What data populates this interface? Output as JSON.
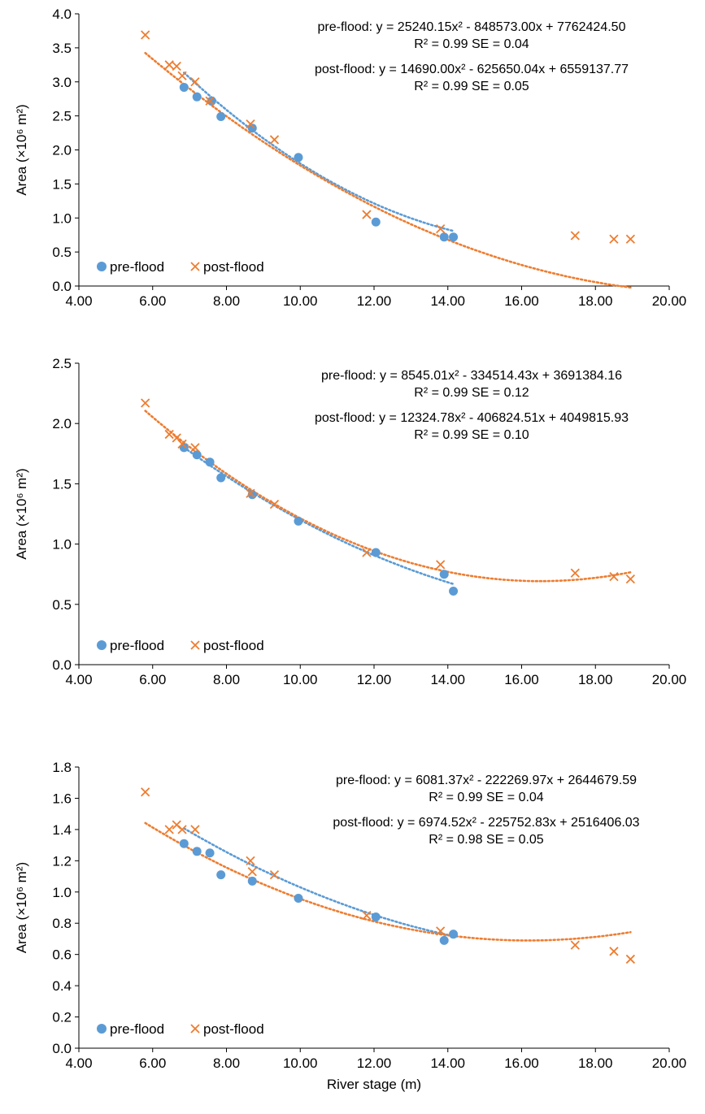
{
  "colors": {
    "pre": "#5b9bd5",
    "post": "#ed7d31",
    "axis": "#000000"
  },
  "chart_data": [
    {
      "type": "scatter",
      "xlabel": "",
      "ylabel": "Area (×10⁶ m²)",
      "xlim": [
        4,
        20
      ],
      "ylim": [
        0,
        4
      ],
      "xticks": [
        "4.00",
        "6.00",
        "8.00",
        "10.00",
        "12.00",
        "14.00",
        "16.00",
        "18.00",
        "20.00"
      ],
      "yticks": [
        "0.0",
        "0.5",
        "1.0",
        "1.5",
        "2.0",
        "2.5",
        "3.0",
        "3.5",
        "4.0"
      ],
      "legend": [
        "pre-flood",
        "post-flood"
      ],
      "legend_position": "bottom-left",
      "equations": [
        "pre-flood: y = 25240.15x² - 848573.00x + 7762424.50",
        "R² = 0.99   SE = 0.04",
        "post-flood: y = 14690.00x² - 625650.04x + 6559137.77",
        "R² = 0.99   SE = 0.05"
      ],
      "series": [
        {
          "name": "pre-flood",
          "marker": "circle",
          "x": [
            6.85,
            7.2,
            7.6,
            7.85,
            8.7,
            9.95,
            12.05,
            13.9,
            14.15
          ],
          "y": [
            2.92,
            2.78,
            2.72,
            2.49,
            2.32,
            1.89,
            0.94,
            0.72,
            0.72
          ],
          "trend": {
            "a": 25240.15,
            "b": -848573.0,
            "c": 7762424.5,
            "range": [
              6.85,
              14.15
            ]
          }
        },
        {
          "name": "post-flood",
          "marker": "x",
          "x": [
            5.8,
            6.45,
            6.65,
            6.8,
            7.15,
            7.55,
            8.65,
            9.3,
            11.8,
            13.8,
            17.45,
            18.5,
            18.95
          ],
          "y": [
            3.69,
            3.25,
            3.23,
            3.09,
            3.0,
            2.72,
            2.38,
            2.15,
            1.05,
            0.84,
            0.74,
            0.69,
            0.69
          ],
          "trend": {
            "a": 14690.0,
            "b": -625650.04,
            "c": 6559137.77,
            "range": [
              5.8,
              18.95
            ]
          }
        }
      ]
    },
    {
      "type": "scatter",
      "xlabel": "",
      "ylabel": "Area (×10⁶ m²)",
      "xlim": [
        4,
        20
      ],
      "ylim": [
        0,
        2.5
      ],
      "xticks": [
        "4.00",
        "6.00",
        "8.00",
        "10.00",
        "12.00",
        "14.00",
        "16.00",
        "18.00",
        "20.00"
      ],
      "yticks": [
        "0.0",
        "0.5",
        "1.0",
        "1.5",
        "2.0",
        "2.5"
      ],
      "legend": [
        "pre-flood",
        "post-flood"
      ],
      "legend_position": "bottom-left",
      "equations": [
        "pre-flood: y = 8545.01x² - 334514.43x + 3691384.16",
        "R² = 0.99   SE = 0.12",
        "post-flood: y = 12324.78x² - 406824.51x + 4049815.93",
        "R² = 0.99   SE = 0.10"
      ],
      "series": [
        {
          "name": "pre-flood",
          "marker": "circle",
          "x": [
            6.85,
            7.2,
            7.55,
            7.85,
            8.7,
            9.95,
            12.05,
            13.9,
            14.15
          ],
          "y": [
            1.8,
            1.74,
            1.68,
            1.55,
            1.41,
            1.19,
            0.93,
            0.75,
            0.61
          ],
          "trend": {
            "a": 8545.01,
            "b": -334514.43,
            "c": 3691384.16,
            "range": [
              6.85,
              14.15
            ]
          }
        },
        {
          "name": "post-flood",
          "marker": "x",
          "x": [
            5.8,
            6.45,
            6.65,
            6.8,
            7.15,
            8.65,
            9.3,
            11.8,
            13.8,
            17.45,
            18.5,
            18.95
          ],
          "y": [
            2.17,
            1.91,
            1.88,
            1.83,
            1.8,
            1.42,
            1.33,
            0.93,
            0.83,
            0.76,
            0.73,
            0.71
          ],
          "trend": {
            "a": 12324.78,
            "b": -406824.51,
            "c": 4049815.93,
            "range": [
              5.8,
              18.95
            ]
          }
        }
      ]
    },
    {
      "type": "scatter",
      "xlabel": "River stage (m)",
      "ylabel": "Area (×10⁶ m²)",
      "xlim": [
        4,
        20
      ],
      "ylim": [
        0,
        1.8
      ],
      "xticks": [
        "4.00",
        "6.00",
        "8.00",
        "10.00",
        "12.00",
        "14.00",
        "16.00",
        "18.00",
        "20.00"
      ],
      "yticks": [
        "0.0",
        "0.2",
        "0.4",
        "0.6",
        "0.8",
        "1.0",
        "1.2",
        "1.4",
        "1.6",
        "1.8"
      ],
      "legend": [
        "pre-flood",
        "post-flood"
      ],
      "legend_position": "bottom-left",
      "equations": [
        "pre-flood: y = 6081.37x² - 222269.97x + 2644679.59",
        "R² = 0.99   SE = 0.04",
        "post-flood: y = 6974.52x² - 225752.83x + 2516406.03",
        "R² = 0.98   SE = 0.05"
      ],
      "series": [
        {
          "name": "pre-flood",
          "marker": "circle",
          "x": [
            6.85,
            7.2,
            7.55,
            7.85,
            8.7,
            9.95,
            12.05,
            13.9,
            14.15
          ],
          "y": [
            1.31,
            1.26,
            1.25,
            1.11,
            1.07,
            0.96,
            0.84,
            0.69,
            0.73
          ],
          "trend": {
            "a": 6081.37,
            "b": -222269.97,
            "c": 2644679.59,
            "range": [
              6.85,
              14.15
            ]
          }
        },
        {
          "name": "post-flood",
          "marker": "x",
          "x": [
            5.8,
            6.45,
            6.65,
            6.8,
            7.15,
            8.65,
            8.7,
            9.3,
            11.8,
            13.8,
            17.45,
            18.5,
            18.95
          ],
          "y": [
            1.64,
            1.4,
            1.43,
            1.4,
            1.4,
            1.2,
            1.13,
            1.11,
            0.85,
            0.75,
            0.66,
            0.62,
            0.57
          ],
          "trend": {
            "a": 6974.52,
            "b": -225752.83,
            "c": 2516406.03,
            "range": [
              5.8,
              18.95
            ]
          }
        }
      ]
    }
  ]
}
